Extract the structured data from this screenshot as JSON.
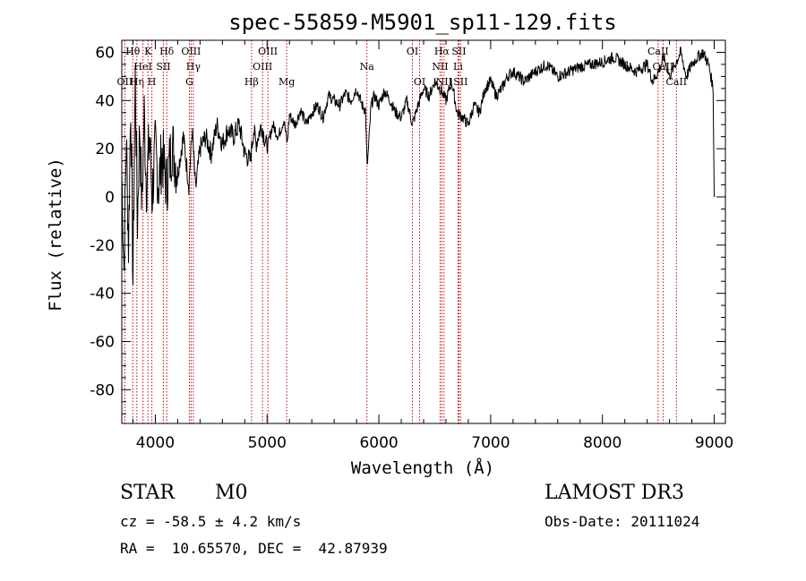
{
  "chart_data": {
    "type": "line",
    "title": "spec-55859-M5901_sp11-129.fits",
    "xlabel": "Wavelength (Å)",
    "ylabel": "Flux (relative)",
    "xlim": [
      3700,
      9100
    ],
    "ylim": [
      -94,
      65
    ],
    "xticks": [
      4000,
      5000,
      6000,
      7000,
      8000,
      9000
    ],
    "yticks": [
      -80,
      -60,
      -40,
      -20,
      0,
      20,
      40,
      60
    ],
    "grid": false,
    "series": [
      {
        "name": "spectrum",
        "x": [
          3700,
          3720,
          3740,
          3760,
          3780,
          3800,
          3820,
          3840,
          3860,
          3880,
          3900,
          3920,
          3950,
          3970,
          4000,
          4030,
          4060,
          4100,
          4150,
          4200,
          4250,
          4300,
          4330,
          4360,
          4400,
          4450,
          4500,
          4550,
          4600,
          4650,
          4700,
          4750,
          4800,
          4850,
          4880,
          4900,
          4950,
          5000,
          5050,
          5100,
          5150,
          5180,
          5200,
          5250,
          5300,
          5350,
          5400,
          5450,
          5500,
          5550,
          5600,
          5650,
          5700,
          5750,
          5800,
          5850,
          5880,
          5895,
          5910,
          5930,
          5960,
          6000,
          6050,
          6100,
          6150,
          6200,
          6250,
          6300,
          6350,
          6400,
          6450,
          6500,
          6560,
          6600,
          6650,
          6700,
          6750,
          6800,
          6850,
          6900,
          6950,
          7000,
          7050,
          7100,
          7150,
          7200,
          7300,
          7400,
          7500,
          7600,
          7700,
          7800,
          7900,
          8000,
          8100,
          8200,
          8300,
          8400,
          8450,
          8500,
          8550,
          8600,
          8650,
          8700,
          8750,
          8800,
          8850,
          8900,
          8950,
          8990,
          9000
        ],
        "values": [
          10,
          -30,
          25,
          -20,
          40,
          -35,
          50,
          -10,
          30,
          -5,
          35,
          5,
          25,
          0,
          20,
          5,
          18,
          5,
          22,
          10,
          25,
          5,
          28,
          3,
          20,
          25,
          18,
          30,
          22,
          28,
          25,
          30,
          18,
          15,
          28,
          22,
          30,
          20,
          30,
          25,
          32,
          22,
          34,
          30,
          36,
          30,
          35,
          38,
          33,
          42,
          40,
          38,
          43,
          40,
          45,
          38,
          36,
          12,
          22,
          38,
          42,
          38,
          44,
          40,
          35,
          33,
          40,
          30,
          38,
          45,
          42,
          48,
          44,
          40,
          48,
          35,
          33,
          30,
          38,
          35,
          45,
          48,
          42,
          45,
          50,
          52,
          48,
          52,
          55,
          50,
          52,
          54,
          55,
          56,
          58,
          55,
          52,
          55,
          48,
          52,
          58,
          50,
          55,
          60,
          50,
          55,
          58,
          60,
          55,
          45,
          0
        ]
      }
    ],
    "lines": [
      {
        "name": "OII",
        "wavelength": 3727,
        "row": 3
      },
      {
        "name": "Hθ",
        "wavelength": 3798,
        "row": 1
      },
      {
        "name": "Hη",
        "wavelength": 3835,
        "row": 3
      },
      {
        "name": "HeI",
        "wavelength": 3889,
        "row": 2
      },
      {
        "name": "K",
        "wavelength": 3934,
        "row": 1
      },
      {
        "name": "H",
        "wavelength": 3969,
        "row": 3
      },
      {
        "name": "SII",
        "wavelength": 4072,
        "row": 2
      },
      {
        "name": "Hδ",
        "wavelength": 4102,
        "row": 1
      },
      {
        "name": "OIII",
        "wavelength": 4320,
        "row": 1
      },
      {
        "name": "Hγ",
        "wavelength": 4340,
        "row": 2
      },
      {
        "name": "G",
        "wavelength": 4305,
        "row": 3
      },
      {
        "name": "Hβ",
        "wavelength": 4861,
        "row": 3
      },
      {
        "name": "OIII",
        "wavelength": 4959,
        "row": 2
      },
      {
        "name": "OIII",
        "wavelength": 5007,
        "row": 1
      },
      {
        "name": "Mg",
        "wavelength": 5175,
        "row": 3
      },
      {
        "name": "Na",
        "wavelength": 5893,
        "row": 2
      },
      {
        "name": "OI",
        "wavelength": 6300,
        "row": 1
      },
      {
        "name": "OI",
        "wavelength": 6364,
        "row": 3
      },
      {
        "name": "NII",
        "wavelength": 6548,
        "row": 2
      },
      {
        "name": "Hα",
        "wavelength": 6563,
        "row": 1
      },
      {
        "name": "NII",
        "wavelength": 6583,
        "row": 3
      },
      {
        "name": "Li",
        "wavelength": 6708,
        "row": 2
      },
      {
        "name": "SII",
        "wavelength": 6716,
        "row": 1
      },
      {
        "name": "SII",
        "wavelength": 6731,
        "row": 3
      },
      {
        "name": "CaII",
        "wavelength": 8498,
        "row": 1
      },
      {
        "name": "CaII",
        "wavelength": 8542,
        "row": 2
      },
      {
        "name": "CaII",
        "wavelength": 8662,
        "row": 3
      }
    ]
  },
  "info": {
    "object_class": "STAR",
    "subclass": "M0",
    "survey": "LAMOST DR3",
    "cz": "cz = -58.5 ± 4.2 km/s",
    "obs_date": "Obs-Date: 20111024",
    "coords": "RA =  10.65570, DEC =  42.87939"
  },
  "colors": {
    "line_marker": "#cc0000",
    "spectrum": "#000000"
  }
}
